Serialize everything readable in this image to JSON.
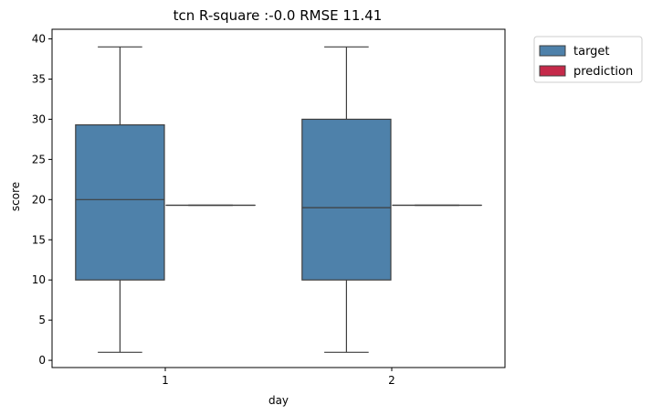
{
  "chart_data": {
    "type": "box",
    "title": "tcn R-square :-0.0 RMSE 11.41",
    "xlabel": "day",
    "ylabel": "score",
    "categories": [
      "1",
      "2"
    ],
    "ylim": [
      -0.9,
      41.2
    ],
    "yticks": [
      0,
      5,
      10,
      15,
      20,
      25,
      30,
      35,
      40
    ],
    "legend_position": "outside-top-right",
    "series": [
      {
        "name": "target",
        "color": "#4e81aa",
        "boxes": [
          {
            "category": "1",
            "min": 1,
            "q1": 10,
            "median": 20,
            "q3": 29.3,
            "max": 39
          },
          {
            "category": "2",
            "min": 1,
            "q1": 10,
            "median": 19,
            "q3": 30,
            "max": 39
          }
        ]
      },
      {
        "name": "prediction",
        "color": "#c52a4a",
        "boxes": [
          {
            "category": "1",
            "min": 19.3,
            "q1": 19.3,
            "median": 19.3,
            "q3": 19.3,
            "max": 19.3
          },
          {
            "category": "2",
            "min": 19.3,
            "q1": 19.3,
            "median": 19.3,
            "q3": 19.3,
            "max": 19.3
          }
        ]
      }
    ]
  }
}
